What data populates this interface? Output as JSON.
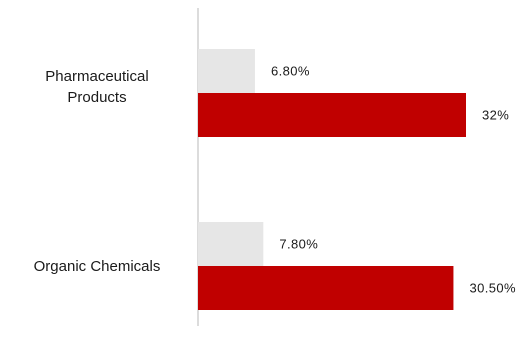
{
  "chart_data": {
    "type": "bar",
    "orientation": "horizontal",
    "categories": [
      "Pharmaceutical Products",
      "Organic Chemicals"
    ],
    "category_lines": [
      [
        "Pharmaceutical",
        "Products"
      ],
      [
        "Organic Chemicals"
      ]
    ],
    "series": [
      {
        "values": [
          6.8,
          7.8
        ],
        "value_labels": [
          "6.80%",
          "7.80%"
        ],
        "color": "#e6e6e6"
      },
      {
        "values": [
          32,
          30.5
        ],
        "value_labels": [
          "32%",
          "30.50%"
        ],
        "color": "#c00000"
      }
    ],
    "xlim": [
      0,
      35
    ],
    "grid": false,
    "legend": "none",
    "axis_color": "#d0d0d0"
  }
}
